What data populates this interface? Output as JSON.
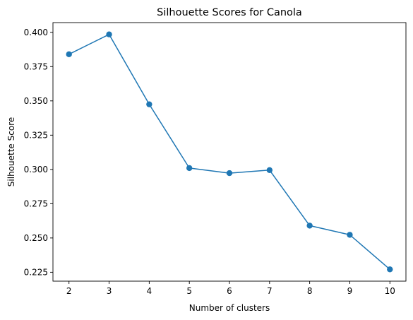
{
  "chart_data": {
    "type": "line",
    "title": "Silhouette Scores for Canola",
    "xlabel": "Number of clusters",
    "ylabel": "Silhouette Score",
    "x": [
      2,
      3,
      4,
      5,
      6,
      7,
      8,
      9,
      10
    ],
    "series": [
      {
        "values": [
          0.384,
          0.3985,
          0.3475,
          0.301,
          0.2973,
          0.2995,
          0.259,
          0.2523,
          0.2271
        ],
        "color": "#1f77b4",
        "marker": "circle"
      }
    ],
    "xticks": [
      "2",
      "3",
      "4",
      "5",
      "6",
      "7",
      "8",
      "9",
      "10"
    ],
    "yticks": [
      "0.225",
      "0.250",
      "0.275",
      "0.300",
      "0.325",
      "0.350",
      "0.375",
      "0.400"
    ],
    "xlim": [
      1.6,
      10.4
    ],
    "ylim": [
      0.2185,
      0.4071
    ],
    "grid": false,
    "legend": "none"
  }
}
